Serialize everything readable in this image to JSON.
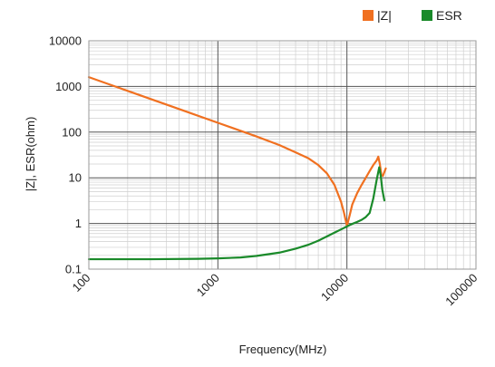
{
  "chart_data": {
    "type": "line",
    "title": "",
    "xlabel": "Frequency(MHz)",
    "ylabel": "|Z|, ESR(ohm)",
    "xscale": "log",
    "yscale": "log",
    "xlim": [
      100,
      100000
    ],
    "ylim": [
      0.1,
      10000
    ],
    "grid": true,
    "legend_position": "top-right",
    "x_ticks": [
      {
        "value": 100,
        "label": "100"
      },
      {
        "value": 1000,
        "label": "1000"
      },
      {
        "value": 10000,
        "label": "10000"
      },
      {
        "value": 100000,
        "label": "100000"
      }
    ],
    "y_ticks": [
      {
        "value": 0.1,
        "label": "0.1"
      },
      {
        "value": 1,
        "label": "1"
      },
      {
        "value": 10,
        "label": "10"
      },
      {
        "value": 100,
        "label": "100"
      },
      {
        "value": 1000,
        "label": "1000"
      },
      {
        "value": 10000,
        "label": "10000"
      }
    ],
    "series": [
      {
        "name": "|Z|",
        "color": "#f07020",
        "points": [
          [
            100,
            1600
          ],
          [
            200,
            800
          ],
          [
            500,
            320
          ],
          [
            1000,
            160
          ],
          [
            2000,
            80
          ],
          [
            3000,
            52
          ],
          [
            4000,
            36
          ],
          [
            5000,
            27
          ],
          [
            6000,
            19
          ],
          [
            7000,
            12.5
          ],
          [
            8000,
            7
          ],
          [
            9000,
            3
          ],
          [
            9500,
            1.7
          ],
          [
            10000,
            0.88
          ],
          [
            10500,
            1.5
          ],
          [
            11000,
            2.6
          ],
          [
            12000,
            4.6
          ],
          [
            13000,
            7
          ],
          [
            14000,
            10
          ],
          [
            15000,
            14
          ],
          [
            16000,
            19
          ],
          [
            17000,
            24
          ],
          [
            17500,
            29
          ],
          [
            18000,
            20
          ],
          [
            18500,
            11.5
          ],
          [
            19000,
            11
          ],
          [
            20000,
            16
          ]
        ]
      },
      {
        "name": "ESR",
        "color": "#1a8a2a",
        "points": [
          [
            100,
            0.165
          ],
          [
            300,
            0.165
          ],
          [
            700,
            0.168
          ],
          [
            1000,
            0.172
          ],
          [
            1500,
            0.18
          ],
          [
            2000,
            0.195
          ],
          [
            3000,
            0.23
          ],
          [
            4000,
            0.28
          ],
          [
            5000,
            0.34
          ],
          [
            6000,
            0.42
          ],
          [
            7000,
            0.52
          ],
          [
            8000,
            0.63
          ],
          [
            9000,
            0.74
          ],
          [
            10000,
            0.86
          ],
          [
            11000,
            0.98
          ],
          [
            12000,
            1.08
          ],
          [
            13000,
            1.2
          ],
          [
            14000,
            1.38
          ],
          [
            15000,
            1.7
          ],
          [
            16000,
            3.5
          ],
          [
            17000,
            9
          ],
          [
            17800,
            17
          ],
          [
            18300,
            11
          ],
          [
            18800,
            5.5
          ],
          [
            19500,
            3.2
          ]
        ]
      }
    ]
  }
}
